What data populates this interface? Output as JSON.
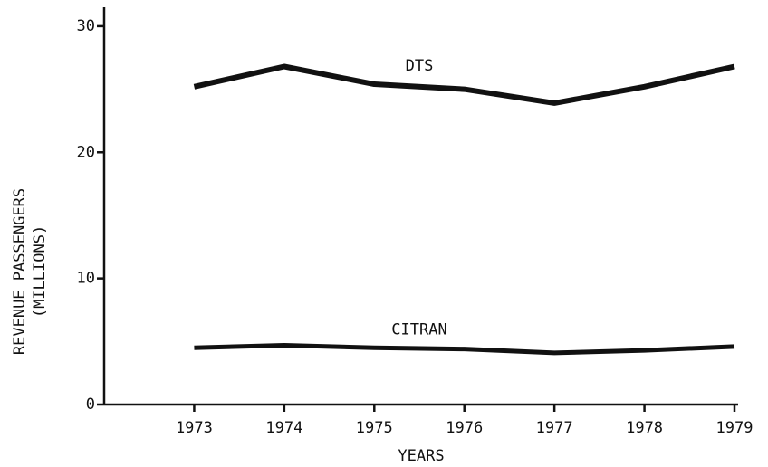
{
  "chart_data": {
    "type": "line",
    "ylabel": [
      "REVENUE PASSENGERS",
      "(MILLIONS)"
    ],
    "xlabel": "YEARS",
    "x": [
      1973,
      1974,
      1975,
      1976,
      1977,
      1978,
      1979
    ],
    "series": [
      {
        "name": "DTS",
        "color": "#111111",
        "values": [
          25.2,
          26.8,
          25.4,
          25.0,
          23.9,
          25.2,
          26.8
        ]
      },
      {
        "name": "CITRAN",
        "color": "#111111",
        "values": [
          4.5,
          4.7,
          4.5,
          4.4,
          4.1,
          4.3,
          4.6
        ]
      }
    ],
    "xlim": [
      1972,
      1979
    ],
    "xticks": [
      1973,
      1974,
      1975,
      1976,
      1977,
      1978,
      1979
    ],
    "ylim": [
      0,
      31.5
    ],
    "yticks": [
      0,
      10,
      20,
      30
    ],
    "grid": false
  }
}
